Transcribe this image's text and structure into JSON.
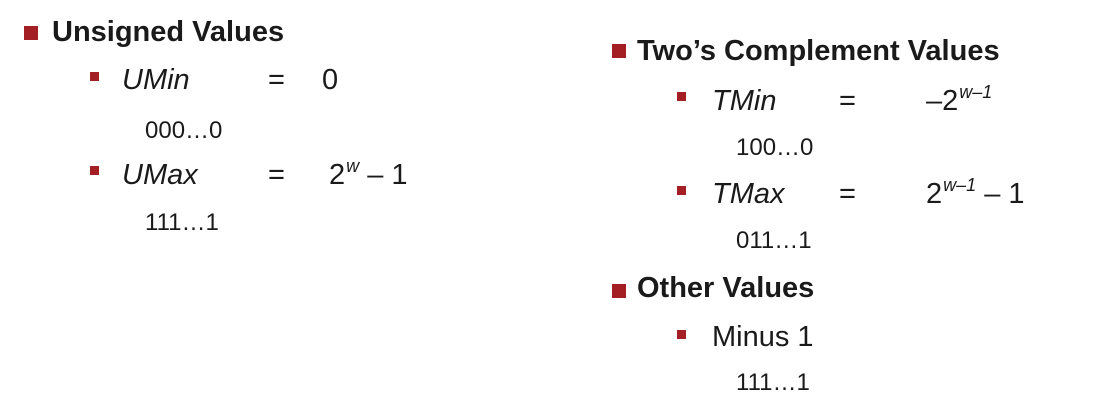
{
  "unsigned": {
    "heading": "Unsigned Values",
    "umin": {
      "term": "UMin",
      "eq": "=",
      "value": "0",
      "bits": "000…0"
    },
    "umax": {
      "term": "UMax",
      "eq": "=",
      "value_base": "2",
      "value_exp": "w",
      "value_tail": " – 1",
      "bits": "111…1"
    }
  },
  "twos": {
    "heading": "Two’s Complement Values",
    "tmin": {
      "term": "TMin",
      "eq": "=",
      "value_base": "–2",
      "value_exp": "w–1",
      "bits": "100…0"
    },
    "tmax": {
      "term": "TMax",
      "eq": "=",
      "value_base": "2",
      "value_exp": "w–1",
      "value_tail": " – 1",
      "bits": "011…1"
    }
  },
  "other": {
    "heading": "Other Values",
    "minus1": {
      "label": "Minus 1",
      "bits": "111…1"
    }
  },
  "colors": {
    "bullet": "#a31f24",
    "text": "#1a1a1a"
  }
}
